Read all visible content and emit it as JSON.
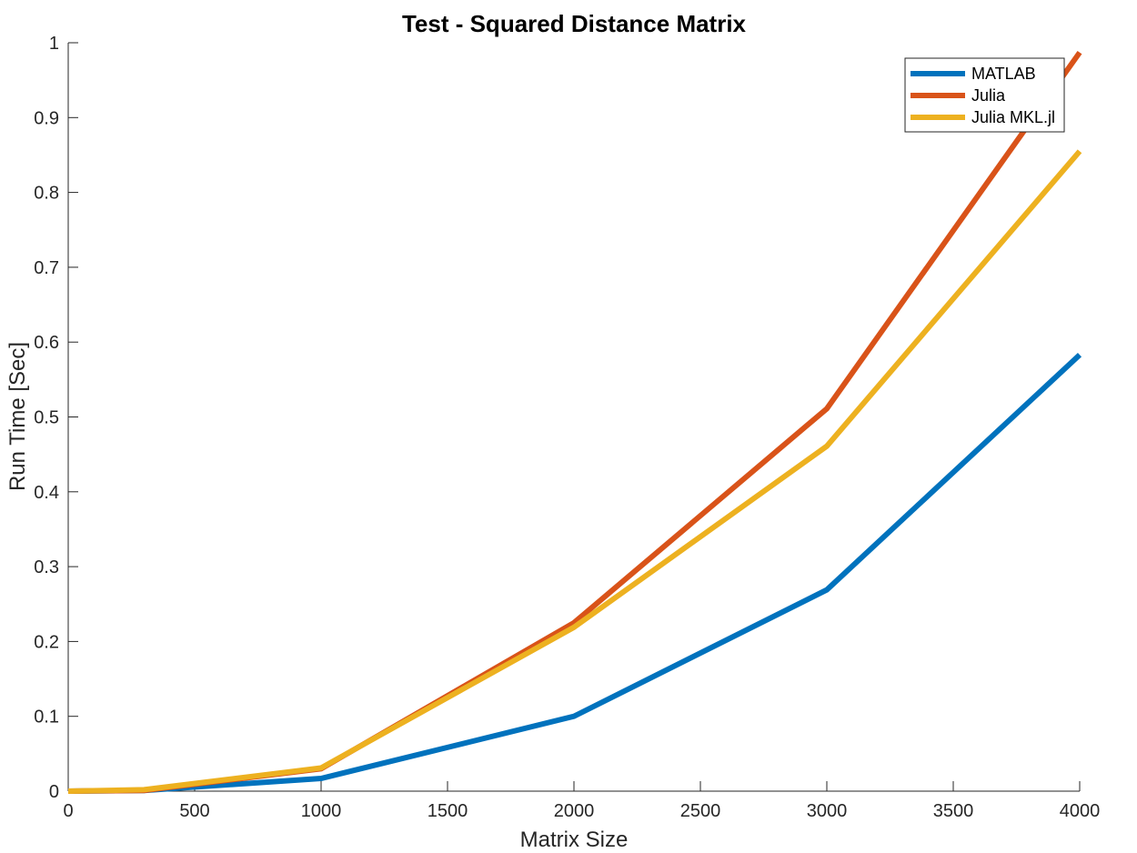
{
  "chart_data": {
    "type": "line",
    "title": "Test - Squared Distance Matrix",
    "xlabel": "Matrix Size",
    "ylabel": "Run Time  [Sec]",
    "xlim": [
      0,
      4000
    ],
    "ylim": [
      0,
      1
    ],
    "xticks": [
      0,
      500,
      1000,
      1500,
      2000,
      2500,
      3000,
      3500,
      4000
    ],
    "yticks": [
      0,
      0.1,
      0.2,
      0.3,
      0.4,
      0.5,
      0.6,
      0.7,
      0.8,
      0.9,
      1
    ],
    "xtick_labels": [
      "0",
      "500",
      "1000",
      "1500",
      "2000",
      "2500",
      "3000",
      "3500",
      "4000"
    ],
    "ytick_labels": [
      "0",
      "0.1",
      "0.2",
      "0.3",
      "0.4",
      "0.5",
      "0.6",
      "0.7",
      "0.8",
      "0.9",
      "1"
    ],
    "grid": false,
    "legend_position": "top-right",
    "x": [
      0,
      300,
      1000,
      2000,
      3000,
      4000
    ],
    "series": [
      {
        "name": "MATLAB",
        "color": "#0072BD",
        "values": [
          0,
          0.001,
          0.017,
          0.1,
          0.269,
          0.583
        ]
      },
      {
        "name": "Julia",
        "color": "#D95319",
        "values": [
          0,
          0.001,
          0.03,
          0.225,
          0.511,
          0.987
        ]
      },
      {
        "name": "Julia MKL.jl",
        "color": "#EDB120",
        "values": [
          0,
          0.002,
          0.031,
          0.219,
          0.461,
          0.855
        ]
      }
    ]
  }
}
